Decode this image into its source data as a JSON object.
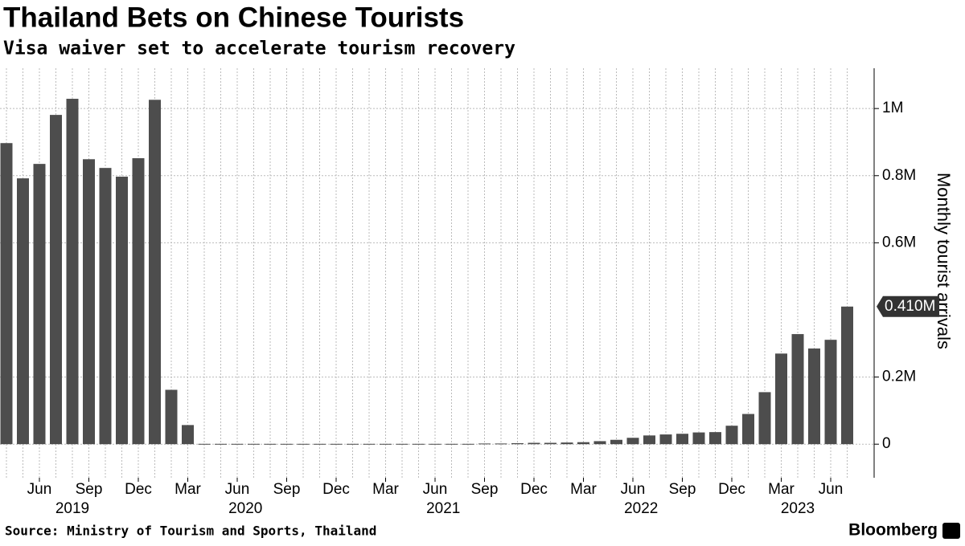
{
  "chart_data": {
    "type": "bar",
    "title": "Thailand Bets on Chinese Tourists",
    "subtitle": "Visa waiver set to accelerate tourism recovery",
    "y_label": "Monthly tourist arrivals",
    "source": "Source: Ministry of Tourism and Sports, Thailand",
    "brand": "Bloomberg",
    "categories": [
      null,
      null,
      "Jun",
      null,
      null,
      "Sep",
      null,
      null,
      "Dec",
      null,
      null,
      "Mar",
      null,
      null,
      "Jun",
      null,
      null,
      "Sep",
      null,
      null,
      "Dec",
      null,
      null,
      "Mar",
      null,
      null,
      "Jun",
      null,
      null,
      "Sep",
      null,
      null,
      "Dec",
      null,
      null,
      "Mar",
      null,
      null,
      "Jun",
      null,
      null,
      "Sep",
      null,
      null,
      "Dec",
      null,
      null,
      "Mar",
      null,
      null,
      "Jun",
      null
    ],
    "years": [
      "2019",
      "2020",
      "2021",
      "2022",
      "2023"
    ],
    "values": [
      0.897,
      0.792,
      0.835,
      0.981,
      1.029,
      0.849,
      0.823,
      0.797,
      0.852,
      1.026,
      0.162,
      0.057,
      0.001,
      0.001,
      0.001,
      0.001,
      0.001,
      0.001,
      0.001,
      0.001,
      0.001,
      0.001,
      0.001,
      0.001,
      0.001,
      0.001,
      0.001,
      0.001,
      0.001,
      0.002,
      0.002,
      0.003,
      0.004,
      0.004,
      0.005,
      0.006,
      0.009,
      0.013,
      0.019,
      0.026,
      0.029,
      0.031,
      0.035,
      0.036,
      0.055,
      0.09,
      0.155,
      0.27,
      0.328,
      0.285,
      0.311,
      0.41
    ],
    "value_labels": [
      null,
      null,
      null,
      null,
      null,
      null,
      null,
      null,
      null,
      null,
      null,
      null,
      null,
      null,
      null,
      null,
      null,
      null,
      null,
      null,
      null,
      null,
      null,
      null,
      null,
      null,
      null,
      null,
      null,
      null,
      null,
      null,
      null,
      null,
      null,
      null,
      null,
      null,
      null,
      null,
      null,
      null,
      null,
      null,
      null,
      null,
      null,
      null,
      null,
      null,
      null,
      "0.410M"
    ],
    "color": "#4d4d4d",
    "ylim": [
      -0.1,
      1.12
    ],
    "yticks": [
      0,
      {
        "value": 0.2,
        "label": "0.2M"
      },
      {
        "value": 0.6,
        "label": "0.6M"
      },
      {
        "value": 0.8,
        "label": "0.8M"
      },
      {
        "value": 1,
        "label": "1M"
      }
    ],
    "grid": true
  }
}
